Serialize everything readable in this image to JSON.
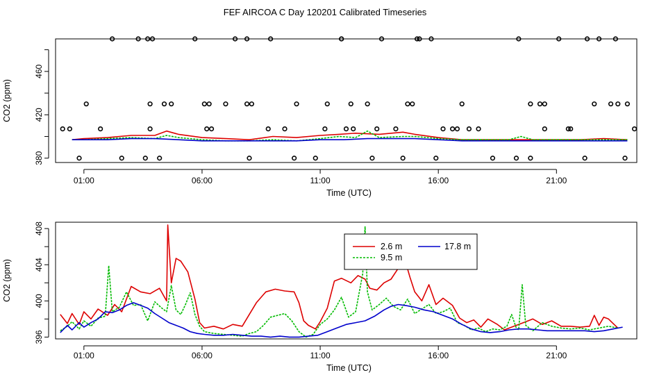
{
  "page": {
    "title": "FEF AIRCOA C  Day 120201  Calibrated Timeseries"
  },
  "colors": {
    "red": "#dd0000",
    "green": "#00bb00",
    "blue": "#0000cc",
    "axis": "#000000"
  },
  "chart_data": [
    {
      "type": "line+scatter",
      "title": "",
      "xlabel": "Time (UTC)",
      "ylabel": "CO2 (ppm)",
      "xlim_hours": [
        -0.2,
        24.4
      ],
      "ylim": [
        376,
        490
      ],
      "xticks": [
        1,
        6,
        11,
        16,
        21
      ],
      "xtick_labels": [
        "01:00",
        "06:00",
        "11:00",
        "16:00",
        "21:00"
      ],
      "yticks": [
        380,
        420,
        460
      ],
      "ytick_labels": [
        "380",
        "420",
        "460"
      ],
      "yticks_minor": [
        400,
        440,
        480
      ],
      "series": [
        {
          "name": "2.6 m",
          "color": "red",
          "x": [
            0.5,
            1,
            2,
            3,
            4,
            4.5,
            5,
            6,
            7,
            8,
            9,
            10,
            11,
            11.8,
            12.5,
            13.5,
            14.5,
            15,
            16,
            17,
            18,
            19,
            20,
            21,
            22,
            23,
            24
          ],
          "values": [
            397,
            398,
            399,
            401,
            401,
            405,
            402,
            399,
            398,
            397,
            400,
            399,
            401,
            402,
            403,
            402,
            404,
            402,
            399,
            397,
            397,
            397,
            397,
            397,
            397,
            398,
            397
          ]
        },
        {
          "name": "9.5 m",
          "color": "green",
          "x": [
            0.5,
            1,
            2,
            3,
            4,
            4.5,
            5,
            6,
            7,
            8,
            9,
            10,
            11,
            11.8,
            12.5,
            13,
            13.5,
            14.5,
            15,
            16,
            17,
            18,
            19,
            19.5,
            20,
            21,
            22,
            23,
            24
          ],
          "values": [
            397,
            397,
            398,
            399,
            398,
            401,
            399,
            397,
            396,
            396,
            397,
            396,
            398,
            400,
            399,
            405,
            399,
            400,
            400,
            398,
            397,
            397,
            397,
            400,
            397,
            397,
            397,
            397,
            397
          ]
        },
        {
          "name": "17.8 m",
          "color": "blue",
          "x": [
            0.5,
            1,
            2,
            3,
            4,
            5,
            6,
            7,
            8,
            9,
            10,
            11,
            12,
            13,
            14,
            15,
            16,
            17,
            18,
            19,
            20,
            21,
            22,
            23,
            24
          ],
          "values": [
            397,
            397,
            397,
            398,
            398,
            397,
            396,
            396,
            396,
            396,
            396,
            397,
            397,
            398,
            398,
            398,
            397,
            396,
            396,
            396,
            396,
            396,
            396,
            396,
            396
          ]
        }
      ],
      "calibration_points": {
        "x": [
          -0.5,
          0.1,
          1.1,
          2.2,
          3.3,
          3.9,
          4.7,
          5.7,
          6.3,
          7,
          7.4,
          8.1,
          8.8,
          10,
          10.8,
          11.2,
          11.9,
          12.4,
          13,
          13.6,
          14.2,
          14.7,
          15.2,
          15.7,
          16.2,
          17,
          17.7,
          18.3,
          19.3,
          19.9,
          20.5,
          21.1,
          21.6,
          22.2,
          22.8,
          23.3,
          23.9,
          24.3,
          0.4,
          1.7,
          2.6,
          3.7,
          3.8,
          4.2,
          6.1,
          6.2,
          7.9,
          8,
          8.9,
          9.9,
          11.3,
          12.1,
          12.3,
          13.4,
          14.5,
          15.1,
          15.9,
          16.6,
          17.3,
          19.4,
          20.5,
          21.5,
          22.3,
          23.6,
          24.0,
          24.5,
          0.8,
          3.6,
          3.8,
          4.4,
          6.4,
          7.9,
          9.5,
          11.9,
          13.2,
          14.9,
          16.8,
          19.9,
          20.3,
          22.6,
          23.5,
          24.5
        ],
        "values": [
          380,
          407,
          430,
          490,
          490,
          490,
          430,
          490,
          430,
          430,
          490,
          430,
          407,
          430,
          380,
          407,
          490,
          407,
          430,
          490,
          407,
          430,
          490,
          490,
          407,
          430,
          407,
          380,
          380,
          430,
          430,
          490,
          407,
          380,
          490,
          430,
          380,
          407,
          407,
          407,
          380,
          490,
          407,
          380,
          430,
          407,
          490,
          380,
          490,
          380,
          430,
          407,
          430,
          407,
          380,
          490,
          380,
          407,
          407,
          490,
          407,
          407,
          490,
          430,
          430,
          407,
          380,
          380,
          430,
          430,
          407,
          430,
          407,
          490,
          380,
          430,
          407,
          380,
          430,
          430,
          490,
          430
        ]
      }
    },
    {
      "type": "line",
      "title": "",
      "xlabel": "Time (UTC)",
      "ylabel": "CO2 (ppm)",
      "xlim_hours": [
        -0.2,
        24.4
      ],
      "ylim": [
        395.8,
        408.7
      ],
      "xticks": [
        1,
        6,
        11,
        16,
        21
      ],
      "xtick_labels": [
        "01:00",
        "06:00",
        "11:00",
        "16:00",
        "21:00"
      ],
      "yticks": [
        396,
        400,
        404,
        408
      ],
      "ytick_labels": [
        "396",
        "400",
        "404",
        "408"
      ],
      "yticks_minor": [
        398,
        402,
        406
      ],
      "legend": {
        "placement": "top-center",
        "entries": [
          "2.6 m",
          "9.5 m",
          "17.8 m"
        ]
      },
      "series": [
        {
          "name": "2.6 m",
          "color": "red",
          "x": [
            0,
            0.3,
            0.5,
            0.8,
            1.0,
            1.3,
            1.6,
            2.0,
            2.3,
            2.6,
            3.0,
            3.4,
            3.8,
            4.2,
            4.5,
            4.55,
            4.7,
            4.9,
            5.1,
            5.4,
            5.7,
            5.9,
            6.1,
            6.5,
            6.9,
            7.3,
            7.7,
            8.0,
            8.3,
            8.7,
            9.1,
            9.5,
            9.9,
            10.1,
            10.3,
            10.5,
            10.8,
            11.0,
            11.3,
            11.6,
            11.9,
            12.3,
            12.6,
            12.9,
            13.1,
            13.4,
            13.7,
            14.0,
            14.3,
            14.6,
            14.8,
            15.0,
            15.3,
            15.6,
            15.9,
            16.2,
            16.6,
            16.9,
            17.2,
            17.5,
            17.8,
            18.1,
            18.5,
            18.8,
            19.2,
            19.6,
            20.0,
            20.4,
            20.8,
            21.2,
            21.6,
            22.0,
            22.4,
            22.6,
            22.8,
            23.0,
            23.2,
            23.4,
            23.6
          ],
          "values": [
            398.5,
            397.5,
            398.6,
            397.4,
            398.8,
            398.0,
            399.1,
            398.4,
            399.6,
            398.8,
            401.6,
            401.0,
            400.8,
            401.4,
            400.0,
            408.4,
            402.0,
            404.7,
            404.4,
            403.2,
            400.2,
            397.6,
            397.0,
            397.2,
            396.9,
            397.4,
            397.2,
            398.5,
            399.8,
            401.0,
            401.3,
            401.1,
            401.0,
            399.8,
            397.8,
            397.3,
            396.9,
            397.7,
            399.2,
            402.2,
            402.5,
            402.0,
            402.8,
            402.4,
            401.4,
            401.2,
            402.0,
            402.4,
            403.6,
            404.4,
            402.6,
            401.0,
            400.0,
            401.8,
            399.6,
            400.3,
            399.5,
            398.1,
            397.6,
            397.9,
            397.1,
            398.0,
            397.4,
            396.8,
            397.2,
            397.6,
            398.0,
            397.4,
            397.8,
            397.2,
            397.2,
            397.1,
            397.2,
            398.4,
            397.3,
            398.2,
            398.0,
            397.5,
            397.0
          ]
        },
        {
          "name": "9.5 m",
          "color": "green",
          "x": [
            0,
            0.3,
            0.5,
            0.8,
            1.0,
            1.3,
            1.6,
            1.9,
            2.05,
            2.2,
            2.5,
            2.8,
            3.1,
            3.4,
            3.7,
            4.0,
            4.3,
            4.5,
            4.7,
            4.9,
            5.1,
            5.3,
            5.5,
            5.7,
            5.9,
            6.1,
            6.5,
            6.9,
            7.3,
            7.7,
            8.0,
            8.3,
            8.6,
            8.9,
            9.2,
            9.5,
            9.8,
            10.1,
            10.4,
            10.7,
            11.0,
            11.3,
            11.6,
            11.9,
            12.2,
            12.5,
            12.8,
            12.9,
            13.0,
            13.2,
            13.5,
            13.8,
            14.1,
            14.4,
            14.7,
            15.0,
            15.3,
            15.6,
            15.9,
            16.2,
            16.5,
            16.8,
            17.1,
            17.4,
            17.7,
            18.0,
            18.3,
            18.6,
            18.9,
            19.1,
            19.3,
            19.4,
            19.55,
            19.7,
            20.0,
            20.4,
            20.8,
            21.2,
            21.6,
            22.0,
            22.4,
            22.8,
            23.2,
            23.6
          ],
          "values": [
            396.7,
            397.2,
            397.7,
            396.9,
            397.8,
            397.2,
            398.1,
            398.3,
            403.9,
            398.8,
            399.3,
            401.0,
            399.5,
            399.6,
            397.8,
            399.9,
            399.2,
            398.8,
            401.7,
            399.0,
            398.5,
            399.6,
            400.9,
            398.5,
            397.2,
            396.6,
            396.4,
            396.3,
            396.2,
            396.1,
            396.4,
            396.6,
            397.3,
            398.2,
            398.4,
            398.6,
            397.8,
            396.6,
            396.0,
            396.3,
            397.4,
            398.0,
            399.0,
            400.4,
            398.2,
            398.8,
            403.0,
            408.2,
            401.0,
            399.0,
            399.6,
            400.3,
            399.4,
            399.0,
            400.2,
            398.6,
            399.1,
            399.6,
            398.6,
            398.8,
            399.2,
            397.6,
            397.3,
            396.8,
            397.0,
            396.6,
            396.9,
            396.8,
            397.2,
            398.5,
            397.0,
            396.8,
            401.8,
            397.3,
            396.7,
            397.6,
            397.2,
            397.0,
            396.9,
            397.0,
            396.8,
            397.0,
            397.2,
            397.0
          ]
        },
        {
          "name": "17.8 m",
          "color": "blue",
          "x": [
            0,
            0.3,
            0.5,
            0.8,
            1.0,
            1.3,
            1.6,
            1.9,
            2.2,
            2.5,
            2.8,
            3.1,
            3.4,
            3.7,
            4.0,
            4.3,
            4.6,
            4.9,
            5.2,
            5.5,
            5.8,
            6.1,
            6.5,
            6.9,
            7.3,
            7.7,
            8.1,
            8.5,
            8.9,
            9.3,
            9.7,
            10.1,
            10.5,
            10.9,
            11.3,
            11.7,
            12.1,
            12.5,
            12.9,
            13.3,
            13.7,
            14.0,
            14.3,
            14.6,
            15.0,
            15.4,
            15.8,
            16.2,
            16.6,
            17.0,
            17.4,
            17.8,
            18.2,
            18.6,
            19.0,
            19.4,
            19.8,
            20.2,
            20.6,
            21.0,
            21.4,
            21.8,
            22.2,
            22.6,
            23.0,
            23.4,
            23.8
          ],
          "values": [
            396.5,
            397.3,
            396.8,
            397.6,
            397.1,
            397.6,
            398.0,
            398.8,
            398.7,
            399.0,
            399.5,
            399.8,
            399.5,
            399.2,
            398.6,
            398.1,
            397.6,
            397.3,
            397.0,
            396.6,
            396.4,
            396.3,
            396.2,
            396.2,
            396.3,
            396.2,
            396.1,
            396.1,
            396.0,
            396.1,
            396.0,
            396.0,
            396.1,
            396.2,
            396.6,
            397.0,
            397.4,
            397.6,
            397.8,
            398.3,
            399.0,
            399.4,
            399.6,
            399.5,
            399.3,
            399.0,
            398.8,
            398.4,
            398.0,
            397.4,
            396.9,
            396.6,
            396.5,
            396.6,
            396.8,
            396.9,
            396.9,
            396.8,
            396.7,
            396.7,
            396.7,
            396.7,
            396.7,
            396.6,
            396.7,
            396.9,
            397.1
          ]
        }
      ]
    }
  ]
}
